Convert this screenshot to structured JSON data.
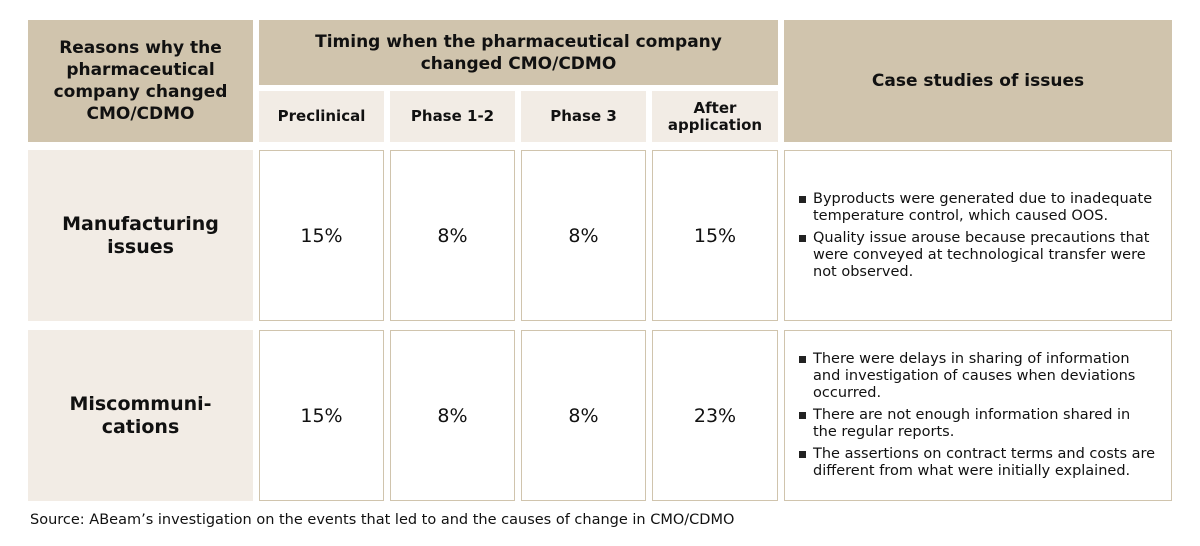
{
  "chart_data": {
    "type": "table",
    "header": {
      "reason": "Reasons why the pharmaceutical company changed CMO/CDMO",
      "timing": "Timing when the pharmaceutical company changed CMO/CDMO",
      "phases": [
        "Preclinical",
        "Phase 1-2",
        "Phase 3",
        "After application"
      ],
      "cases": "Case studies of issues"
    },
    "rows": [
      {
        "reason": "Manufacturing issues",
        "values": [
          "15%",
          "8%",
          "8%",
          "15%"
        ],
        "cases": [
          "Byproducts were generated due to inadequate temperature control, which caused OOS.",
          "Quality issue arouse because precautions that were conveyed at technological transfer were not observed."
        ]
      },
      {
        "reason": "Miscommuni-cations",
        "values": [
          "15%",
          "8%",
          "8%",
          "23%"
        ],
        "cases": [
          "There were delays in sharing of information and investigation of causes when deviations occurred.",
          "There are not enough information shared in the regular reports.",
          "The assertions on contract terms and costs are different from what were initially explained."
        ]
      }
    ],
    "source": "Source:  ABeam’s investigation on the events that led to and the causes of change in CMO/CDMO"
  }
}
